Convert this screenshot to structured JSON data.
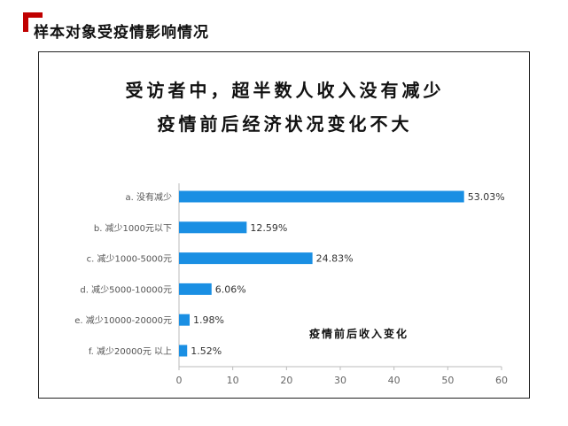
{
  "header": {
    "title": "样本对象受疫情影响情况"
  },
  "chart_data": {
    "type": "bar",
    "orientation": "horizontal",
    "title": [
      "受访者中，超半数人收入没有减少",
      "疫情前后经济状况变化不大"
    ],
    "annotation": "疫情前后收入变化",
    "categories": [
      "a. 没有减少",
      "b. 减少1000元以下",
      "c. 减少1000-5000元",
      "d. 减少5000-10000元",
      "e. 减少10000-20000元",
      "f. 减少20000元 以上"
    ],
    "values": [
      53.03,
      12.59,
      24.83,
      6.06,
      1.98,
      1.52
    ],
    "value_labels": [
      "53.03%",
      "12.59%",
      "24.83%",
      "6.06%",
      "1.98%",
      "1.52%"
    ],
    "xlim": [
      0,
      60
    ],
    "xticks": [
      0,
      10,
      20,
      30,
      40,
      50,
      60
    ],
    "bar_color": "#1a8fe3",
    "grid": false
  }
}
